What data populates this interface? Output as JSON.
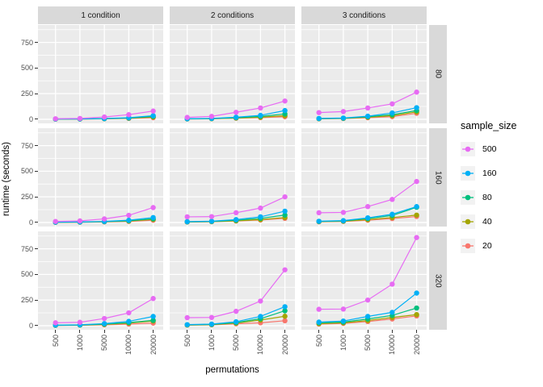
{
  "figure": {
    "background": "#ffffff",
    "panel_background": "#ebebeb",
    "strip_background": "#d9d9d9",
    "grid_color": "#ffffff",
    "tick_label_color": "#4d4d4d"
  },
  "legend": {
    "title": "sample_size",
    "entries": [
      {
        "label": "500",
        "color": "#e76bf3"
      },
      {
        "label": "160",
        "color": "#00b0f6"
      },
      {
        "label": "80",
        "color": "#00bf7d"
      },
      {
        "label": "40",
        "color": "#a3a500"
      },
      {
        "label": "20",
        "color": "#f8766d"
      }
    ]
  },
  "chart_data": {
    "type": "line",
    "xlabel": "permutations",
    "ylabel": "runtime (seconds)",
    "x_categories": [
      "500",
      "1000",
      "5000",
      "10000",
      "20000"
    ],
    "y_ticks": [
      0,
      250,
      500,
      750
    ],
    "y_minor": [
      125,
      375,
      625,
      875
    ],
    "ylim": [
      -40,
      920
    ],
    "col_facets": [
      "1 condition",
      "2 conditions",
      "3 conditions"
    ],
    "row_facets": [
      "80",
      "160",
      "320"
    ],
    "grid": true,
    "legend_position": "right",
    "panels": [
      {
        "row": "80",
        "col": "1 condition",
        "series": [
          {
            "name": "500",
            "values": [
              5,
              8,
              22,
              45,
              80
            ]
          },
          {
            "name": "160",
            "values": [
              2,
              3,
              7,
              15,
              35
            ]
          },
          {
            "name": "80",
            "values": [
              2,
              3,
              6,
              12,
              28
            ]
          },
          {
            "name": "40",
            "values": [
              1,
              2,
              5,
              10,
              22
            ]
          },
          {
            "name": "20",
            "values": [
              1,
              2,
              4,
              8,
              15
            ]
          }
        ]
      },
      {
        "row": "80",
        "col": "2 conditions",
        "series": [
          {
            "name": "500",
            "values": [
              18,
              28,
              68,
              110,
              178
            ]
          },
          {
            "name": "160",
            "values": [
              5,
              8,
              20,
              38,
              85
            ]
          },
          {
            "name": "80",
            "values": [
              4,
              7,
              15,
              28,
              52
            ]
          },
          {
            "name": "40",
            "values": [
              3,
              5,
              12,
              20,
              35
            ]
          },
          {
            "name": "20",
            "values": [
              3,
              5,
              10,
              16,
              25
            ]
          }
        ]
      },
      {
        "row": "80",
        "col": "3 conditions",
        "series": [
          {
            "name": "500",
            "values": [
              65,
              75,
              110,
              150,
              265
            ]
          },
          {
            "name": "160",
            "values": [
              8,
              12,
              30,
              62,
              113
            ]
          },
          {
            "name": "80",
            "values": [
              6,
              10,
              25,
              45,
              85
            ]
          },
          {
            "name": "40",
            "values": [
              5,
              8,
              20,
              35,
              72
            ]
          },
          {
            "name": "20",
            "values": [
              4,
              7,
              15,
              26,
              58
            ]
          }
        ]
      },
      {
        "row": "160",
        "col": "1 condition",
        "series": [
          {
            "name": "500",
            "values": [
              10,
              15,
              35,
              70,
              145
            ]
          },
          {
            "name": "160",
            "values": [
              3,
              5,
              10,
              22,
              48
            ]
          },
          {
            "name": "80",
            "values": [
              2,
              4,
              8,
              17,
              36
            ]
          },
          {
            "name": "40",
            "values": [
              2,
              3,
              7,
              14,
              30
            ]
          },
          {
            "name": "20",
            "values": [
              1,
              2,
              5,
              10,
              22
            ]
          }
        ]
      },
      {
        "row": "160",
        "col": "2 conditions",
        "series": [
          {
            "name": "500",
            "values": [
              55,
              57,
              95,
              140,
              250
            ]
          },
          {
            "name": "160",
            "values": [
              8,
              12,
              28,
              55,
              110
            ]
          },
          {
            "name": "80",
            "values": [
              6,
              10,
              22,
              40,
              72
            ]
          },
          {
            "name": "40",
            "values": [
              5,
              8,
              16,
              28,
              48
            ]
          },
          {
            "name": "20",
            "values": [
              4,
              7,
              14,
              24,
              40
            ]
          }
        ]
      },
      {
        "row": "160",
        "col": "3 conditions",
        "series": [
          {
            "name": "500",
            "values": [
              95,
              98,
              155,
              225,
              400
            ]
          },
          {
            "name": "160",
            "values": [
              12,
              18,
              45,
              80,
              155
            ]
          },
          {
            "name": "80",
            "values": [
              10,
              15,
              38,
              68,
              148
            ]
          },
          {
            "name": "40",
            "values": [
              8,
              12,
              28,
              48,
              72
            ]
          },
          {
            "name": "20",
            "values": [
              6,
              10,
              22,
              38,
              58
            ]
          }
        ]
      },
      {
        "row": "320",
        "col": "1 condition",
        "series": [
          {
            "name": "500",
            "values": [
              28,
              33,
              70,
              125,
              265
            ]
          },
          {
            "name": "160",
            "values": [
              5,
              8,
              20,
              42,
              90
            ]
          },
          {
            "name": "80",
            "values": [
              4,
              6,
              15,
              30,
              52
            ]
          },
          {
            "name": "40",
            "values": [
              3,
              5,
              12,
              25,
              45
            ]
          },
          {
            "name": "20",
            "values": [
              2,
              4,
              8,
              15,
              25
            ]
          }
        ]
      },
      {
        "row": "320",
        "col": "2 conditions",
        "series": [
          {
            "name": "500",
            "values": [
              78,
              80,
              140,
              240,
              545
            ]
          },
          {
            "name": "160",
            "values": [
              10,
              15,
              38,
              90,
              185
            ]
          },
          {
            "name": "80",
            "values": [
              8,
              12,
              30,
              68,
              145
            ]
          },
          {
            "name": "40",
            "values": [
              6,
              10,
              25,
              55,
              92
            ]
          },
          {
            "name": "20",
            "values": [
              5,
              8,
              18,
              28,
              48
            ]
          }
        ]
      },
      {
        "row": "320",
        "col": "3 conditions",
        "series": [
          {
            "name": "500",
            "values": [
              160,
              162,
              250,
              405,
              860
            ]
          },
          {
            "name": "160",
            "values": [
              35,
              45,
              90,
              130,
              318
            ]
          },
          {
            "name": "80",
            "values": [
              28,
              35,
              65,
              100,
              172
            ]
          },
          {
            "name": "40",
            "values": [
              20,
              28,
              50,
              80,
              108
            ]
          },
          {
            "name": "20",
            "values": [
              15,
              22,
              40,
              65,
              95
            ]
          }
        ]
      }
    ]
  }
}
